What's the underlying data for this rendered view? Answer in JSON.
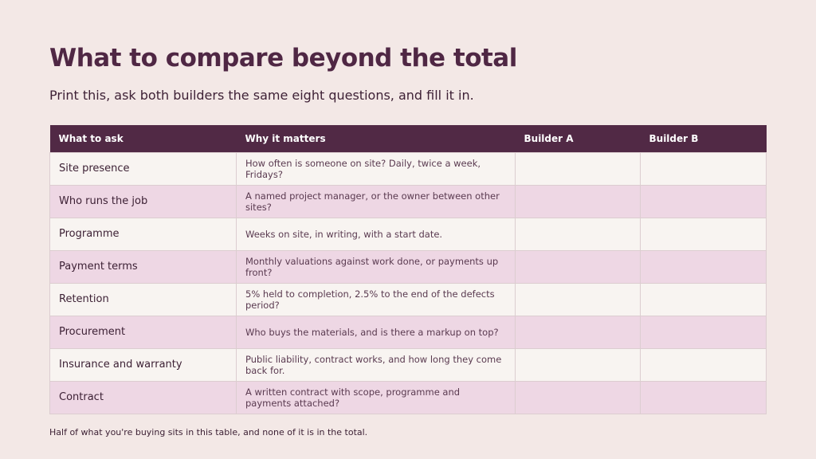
{
  "title": "What to compare beyond the total",
  "subtitle": "Print this, ask both builders the same eight questions, and fill it in.",
  "table": {
    "headers": [
      "What to ask",
      "Why it matters",
      "Builder A",
      "Builder B"
    ],
    "rows": [
      {
        "ask": "Site presence",
        "why": "How often is someone on site? Daily, twice a week, Fridays?",
        "builder_a": "",
        "builder_b": ""
      },
      {
        "ask": "Who runs the job",
        "why": "A named project manager, or the owner between other sites?",
        "builder_a": "",
        "builder_b": ""
      },
      {
        "ask": "Programme",
        "why": "Weeks on site, in writing, with a start date.",
        "builder_a": "",
        "builder_b": ""
      },
      {
        "ask": "Payment terms",
        "why": "Monthly valuations against work done, or payments up front?",
        "builder_a": "",
        "builder_b": ""
      },
      {
        "ask": "Retention",
        "why": "5% held to completion, 2.5% to the end of the defects period?",
        "builder_a": "",
        "builder_b": ""
      },
      {
        "ask": "Procurement",
        "why": "Who buys the materials, and is there a markup on top?",
        "builder_a": "",
        "builder_b": ""
      },
      {
        "ask": "Insurance and warranty",
        "why": "Public liability, contract works, and how long they come back for.",
        "builder_a": "",
        "builder_b": ""
      },
      {
        "ask": "Contract",
        "why": "A written contract with scope, programme and payments attached?",
        "builder_a": "",
        "builder_b": ""
      }
    ]
  },
  "footnote": "Half of what you're buying sits in this table, and none of it is in the total.",
  "colors": {
    "background": "#f3e8e6",
    "header": "#512945",
    "row_light": "#f8f4f1",
    "row_pink": "#eed7e4",
    "title": "#4f2744"
  }
}
